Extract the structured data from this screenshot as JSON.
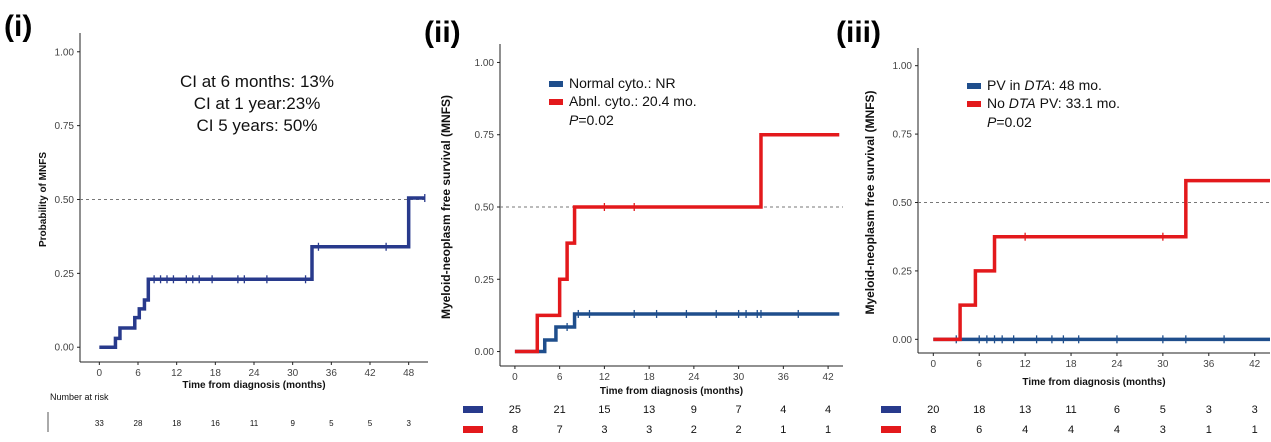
{
  "colors": {
    "navy": "#283a8c",
    "blue": "#1f4e8c",
    "red": "#e3191c",
    "ref_line": "#777777"
  },
  "chart_data": [
    {
      "id": "i",
      "type": "line",
      "step": true,
      "panel_label": "(i)",
      "xlabel": "Time from diagnosis (months)",
      "ylabel": "Probability of MNFS",
      "xlim": [
        -3,
        51
      ],
      "ylim": [
        -0.05,
        1.05
      ],
      "xticks": [
        "0",
        "6",
        "12",
        "18",
        "24",
        "30",
        "36",
        "42",
        "48"
      ],
      "yticks": [
        "0.00",
        "0.25",
        "0.50",
        "0.75",
        "1.00"
      ],
      "reference_line": 0.5,
      "annotations": [
        "CI at 6 months: 13%",
        "CI at 1 year:23%",
        "CI 5 years: 50%"
      ],
      "series": [
        {
          "color": "#283a8c",
          "x": [
            0,
            2.5,
            3.2,
            5.5,
            6.2,
            7.0,
            7.6,
            33.0,
            48.0,
            50.5
          ],
          "y": [
            0.0,
            0.03,
            0.065,
            0.1,
            0.13,
            0.16,
            0.23,
            0.34,
            0.505,
            0.505
          ],
          "censor_x": [
            8.5,
            9.5,
            10.5,
            11.5,
            13.5,
            14.5,
            15.5,
            17.5,
            21.5,
            22.5,
            26.0,
            32.0,
            34.0,
            44.5,
            50.5
          ]
        }
      ],
      "risk_table": {
        "title": "Number at risk",
        "rows": [
          {
            "values": [
              "33",
              "28",
              "18",
              "16",
              "11",
              "9",
              "5",
              "5",
              "3"
            ]
          }
        ]
      }
    },
    {
      "id": "ii",
      "type": "line",
      "step": true,
      "panel_label": "(ii)",
      "xlabel": "Time from diagnosis (months)",
      "ylabel": "Myeloid-neoplasm free survival (MNFS)",
      "xlim": [
        -2,
        44
      ],
      "ylim": [
        -0.05,
        1.05
      ],
      "xticks": [
        "0",
        "6",
        "12",
        "18",
        "24",
        "30",
        "36",
        "42"
      ],
      "yticks": [
        "0.00",
        "0.25",
        "0.50",
        "0.75",
        "1.00"
      ],
      "reference_line": 0.5,
      "legend": {
        "entries": [
          "Normal cyto.: NR",
          "Abnl. cyto.: 20.4 mo."
        ],
        "p_label": "P",
        "p_value": "=0.02"
      },
      "series": [
        {
          "name": "Normal cyto.: NR",
          "color": "#1f4e8c",
          "x": [
            0,
            4.0,
            5.5,
            8.0,
            43.5
          ],
          "y": [
            0.0,
            0.04,
            0.085,
            0.13,
            0.13
          ],
          "censor_x": [
            7.0,
            8.5,
            10.0,
            16.0,
            19.0,
            23.0,
            27.0,
            30.0,
            31.0,
            32.5,
            33.0,
            38.0
          ]
        },
        {
          "name": "Abnl. cyto.: 20.4 mo.",
          "color": "#e3191c",
          "x": [
            0,
            3.0,
            6.0,
            7.0,
            8.0,
            33.0,
            43.5
          ],
          "y": [
            0.0,
            0.125,
            0.25,
            0.375,
            0.5,
            0.75,
            0.75
          ],
          "censor_x": [
            12.0,
            16.0
          ]
        }
      ],
      "risk_table": {
        "rows": [
          {
            "color": "#283a8c",
            "values": [
              "25",
              "21",
              "15",
              "13",
              "9",
              "7",
              "4",
              "4"
            ]
          },
          {
            "color": "#e3191c",
            "values": [
              "8",
              "7",
              "3",
              "3",
              "2",
              "2",
              "1",
              "1"
            ]
          }
        ]
      }
    },
    {
      "id": "iii",
      "type": "line",
      "step": true,
      "panel_label": "(iii)",
      "xlabel": "Time from diagnosis (months)",
      "ylabel": "Myeloid-neoplasm free survival (MNFS)",
      "xlim": [
        -2,
        44
      ],
      "ylim": [
        -0.05,
        1.05
      ],
      "xticks": [
        "0",
        "6",
        "12",
        "18",
        "24",
        "30",
        "36",
        "42"
      ],
      "yticks": [
        "0.00",
        "0.25",
        "0.50",
        "0.75",
        "1.00"
      ],
      "reference_line": 0.5,
      "legend": {
        "entries": [
          {
            "before": "PV in ",
            "italic": "DTA",
            "after": ": 48 mo."
          },
          {
            "before": "No ",
            "italic": "DTA",
            "after": " PV: 33.1 mo."
          }
        ],
        "p_label": "P",
        "p_value": "=0.02"
      },
      "series": [
        {
          "name": "PV in DTA: 48 mo.",
          "color": "#1f4e8c",
          "x": [
            0,
            44
          ],
          "y": [
            0.0,
            0.0
          ],
          "censor_x": [
            3.0,
            6.0,
            7.0,
            8.0,
            9.0,
            10.5,
            13.5,
            15.5,
            17.0,
            19.0,
            24.0,
            30.0,
            33.0,
            38.0
          ]
        },
        {
          "name": "No DTA PV: 33.1 mo.",
          "color": "#e3191c",
          "x": [
            0,
            3.5,
            5.5,
            8.0,
            33.0,
            44
          ],
          "y": [
            0.0,
            0.125,
            0.25,
            0.375,
            0.58,
            0.58
          ],
          "censor_x": [
            12.0,
            30.0
          ]
        }
      ],
      "risk_table": {
        "rows": [
          {
            "color": "#283a8c",
            "values": [
              "20",
              "18",
              "13",
              "11",
              "6",
              "5",
              "3",
              "3"
            ]
          },
          {
            "color": "#e3191c",
            "values": [
              "8",
              "6",
              "4",
              "4",
              "4",
              "3",
              "1",
              "1"
            ]
          }
        ]
      }
    }
  ]
}
